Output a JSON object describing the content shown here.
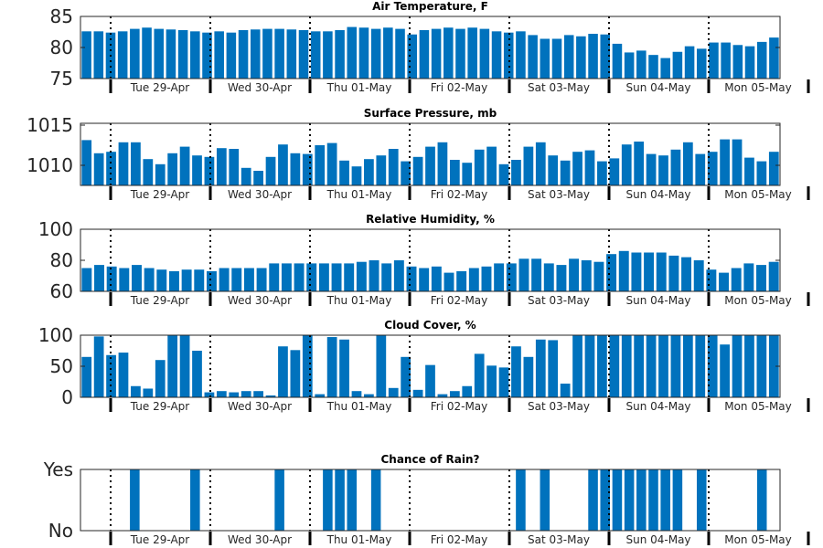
{
  "colors": {
    "bar": "#0072bd",
    "axis": "#262626"
  },
  "days": [
    "Tue 29-Apr",
    "Wed 30-Apr",
    "Thu 01-May",
    "Fri 02-May",
    "Sat 03-May",
    "Sun 04-May",
    "Mon 05-May"
  ],
  "chart_data": [
    {
      "type": "bar",
      "title": "Air Temperature, F",
      "ylim": [
        75,
        85
      ],
      "yticks": [
        "75",
        "80",
        "85"
      ],
      "values": [
        82.6,
        82.6,
        82.4,
        82.6,
        83.0,
        83.2,
        83.0,
        82.9,
        82.8,
        82.6,
        82.4,
        82.6,
        82.4,
        82.8,
        82.9,
        83.0,
        83.0,
        82.9,
        82.8,
        82.6,
        82.6,
        82.8,
        83.3,
        83.2,
        83.0,
        83.2,
        83.0,
        82.1,
        82.8,
        83.0,
        83.2,
        83.0,
        83.2,
        83.0,
        82.6,
        82.4,
        82.6,
        82.0,
        81.4,
        81.4,
        82.0,
        81.8,
        82.2,
        82.1,
        80.6,
        79.2,
        79.5,
        78.8,
        78.3,
        79.3,
        80.2,
        79.8,
        80.8,
        80.8,
        80.4,
        80.2,
        80.9,
        81.6
      ]
    },
    {
      "type": "bar",
      "title": "Surface Pressure, mb",
      "ylim": [
        1007,
        1015.5
      ],
      "yticks": [
        "1010",
        "1015"
      ],
      "values": [
        1013.2,
        1011.4,
        1011.6,
        1012.9,
        1012.9,
        1010.6,
        1009.9,
        1011.4,
        1012.3,
        1011.1,
        1010.9,
        1012.1,
        1012.0,
        1009.4,
        1009.0,
        1010.9,
        1012.6,
        1011.4,
        1011.3,
        1012.5,
        1012.8,
        1010.4,
        1009.6,
        1010.6,
        1011.1,
        1012.0,
        1010.3,
        1010.9,
        1012.3,
        1012.9,
        1010.5,
        1010.1,
        1011.9,
        1012.3,
        1009.9,
        1010.5,
        1012.3,
        1012.9,
        1011.1,
        1010.4,
        1011.6,
        1011.8,
        1010.3,
        1010.7,
        1012.6,
        1013.0,
        1011.3,
        1011.1,
        1011.9,
        1012.9,
        1011.3,
        1011.6,
        1013.3,
        1013.3,
        1010.8,
        1010.3,
        1011.6
      ]
    },
    {
      "type": "bar",
      "title": "Relative Humidity, %",
      "ylim": [
        60,
        100
      ],
      "yticks": [
        "60",
        "80",
        "100"
      ],
      "values": [
        75,
        77,
        76,
        75,
        77,
        75,
        74,
        73,
        74,
        74,
        73,
        75,
        75,
        75,
        75,
        78,
        78,
        78,
        78,
        78,
        78,
        78,
        79,
        80,
        78,
        80,
        76,
        75,
        76,
        72,
        73,
        75,
        76,
        78,
        78,
        81,
        81,
        78,
        77,
        81,
        80,
        79,
        84,
        86,
        85,
        85,
        85,
        83,
        82,
        80,
        74,
        72,
        75,
        78,
        77,
        79
      ]
    },
    {
      "type": "bar",
      "title": "Cloud Cover, %",
      "ylim": [
        0,
        100
      ],
      "yticks": [
        "0",
        "50",
        "100"
      ],
      "values": [
        65,
        98,
        68,
        72,
        18,
        14,
        60,
        100,
        100,
        75,
        8,
        10,
        8,
        10,
        10,
        3,
        82,
        76,
        100,
        5,
        97,
        93,
        10,
        5,
        100,
        15,
        65,
        12,
        52,
        5,
        10,
        18,
        70,
        51,
        48,
        82,
        65,
        93,
        92,
        22,
        100,
        100,
        100,
        100,
        100,
        100,
        100,
        100,
        100,
        100,
        100,
        100,
        85,
        100,
        100,
        100,
        100
      ]
    },
    {
      "type": "bar",
      "title": "Chance of Rain?",
      "ylim": [
        0,
        1
      ],
      "yticks": [
        "No",
        "Yes"
      ],
      "values": [
        0,
        0,
        0,
        0,
        1,
        0,
        0,
        0,
        0,
        1,
        0,
        0,
        0,
        0,
        0,
        0,
        1,
        0,
        0,
        0,
        1,
        1,
        1,
        0,
        1,
        0,
        0,
        0,
        0,
        0,
        0,
        0,
        0,
        0,
        0,
        0,
        1,
        0,
        1,
        0,
        0,
        0,
        1,
        1,
        1,
        1,
        1,
        1,
        1,
        1,
        0,
        1,
        0,
        0,
        0,
        0,
        1,
        0
      ]
    }
  ]
}
